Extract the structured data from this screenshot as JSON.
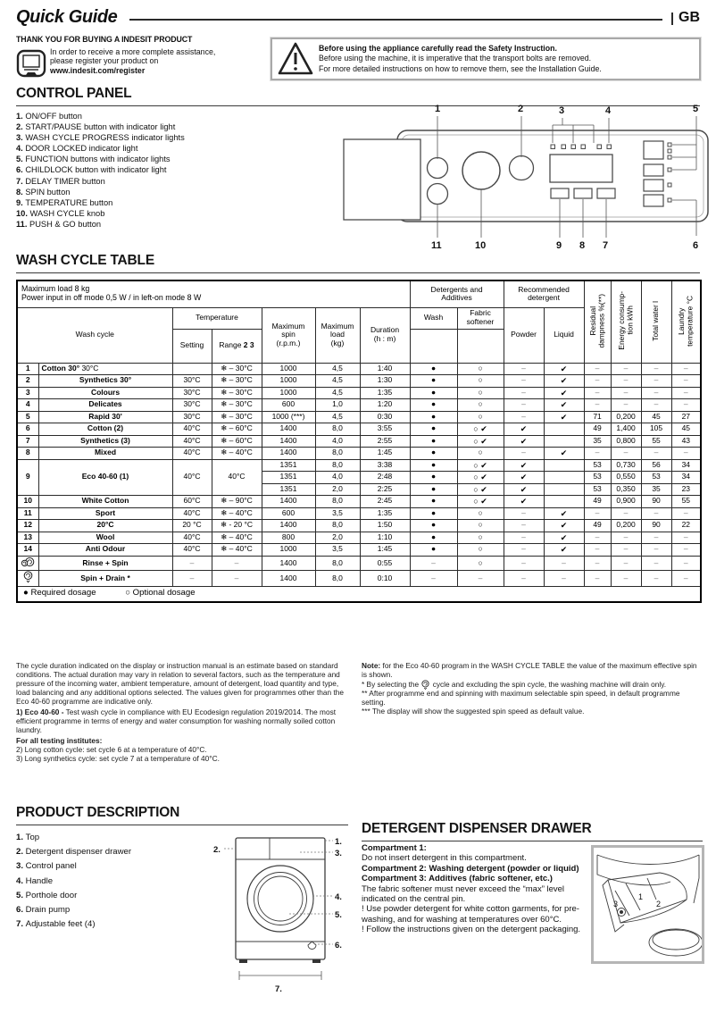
{
  "header": {
    "title": "Quick Guide",
    "country": "GB"
  },
  "thanks": {
    "heading": "THANK YOU FOR BUYING A INDESIT PRODUCT",
    "line1": "In order to receive a more complete assistance,",
    "line2": "please register your product on",
    "link": "www.indesit.com/register"
  },
  "warning": {
    "bold": "Before using the appliance carefully read the Safety Instruction.",
    "line2": "Before using the machine, it is imperative that the transport bolts are removed.",
    "line3": "For more detailed instructions on how to remove them, see the Installation Guide."
  },
  "control_panel": {
    "heading": "CONTROL PANEL",
    "items": [
      {
        "num": "1.",
        "label": "ON/OFF button"
      },
      {
        "num": "2.",
        "label": " START/PAUSE button with indicator light"
      },
      {
        "num": "3.",
        "label": "WASH CYCLE PROGRESS indicator lights"
      },
      {
        "num": "4.",
        "label": "DOOR LOCKED indicator light"
      },
      {
        "num": "5.",
        "label": "FUNCTION buttons with indicator lights"
      },
      {
        "num": "6.",
        "label": "CHILDLOCK button with indicator light"
      },
      {
        "num": "7.",
        "label": "DELAY TIMER button"
      },
      {
        "num": "8.",
        "label": "SPIN button"
      },
      {
        "num": "9.",
        "label": "TEMPERATURE button"
      },
      {
        "num": "10.",
        "label": "WASH CYCLE knob"
      },
      {
        "num": "11.",
        "label": "PUSH & GO button"
      }
    ],
    "callouts_top": [
      "1",
      "2",
      "3",
      "4",
      "5"
    ],
    "callouts_bottom": [
      "11",
      "10",
      "9",
      "8",
      "7",
      "6"
    ]
  },
  "wash_table": {
    "heading": "WASH CYCLE TABLE",
    "info": "Maximum load 8 kg\nPower input in off  mode 0,5 W / in left-on mode 8 W",
    "headers": {
      "wash_cycle": "Wash cycle",
      "temperature": "Temperature",
      "setting": "Setting",
      "range_prefix": "Range ",
      "range_bold": "2 3",
      "spin": "Maximum\nspin\n(r.p.m.)",
      "load": "Maximum\nload\n(kg)",
      "duration": "Duration\n(h : m)",
      "det_add": "Detergents and\nAdditives",
      "rec_det": "Recommended\ndetergent",
      "wash": "Wash",
      "softener": "Fabric\nsoftener",
      "powder": "Powder",
      "liquid": "Liquid",
      "residual": "Residual\ndampness %(**)",
      "energy": "Energy consump-\ntion kWh",
      "water": "Total water l",
      "laundry": "Laundry\ntemperature °C"
    },
    "symbols": {
      "dot": "●",
      "circle": "○",
      "circle-check": "○ ✔",
      "check": "✔",
      "dash": "–"
    },
    "rows": [
      {
        "num": "1",
        "name": "Cotton 30°",
        "suffix": " 30°C",
        "setting": "",
        "range": "❄ – 30°C",
        "spin": "1000",
        "load": "4,5",
        "dur": "1:40",
        "wash": "dot",
        "soft": "circle",
        "powder": "dash",
        "liquid": "check",
        "res": "–",
        "en": "–",
        "wat": "–",
        "temp": "–"
      },
      {
        "num": "2",
        "name": "Synthetics 30°",
        "setting": "30°C",
        "range": "❄ – 30°C",
        "spin": "1000",
        "load": "4,5",
        "dur": "1:30",
        "wash": "dot",
        "soft": "circle",
        "powder": "dash",
        "liquid": "check",
        "res": "–",
        "en": "–",
        "wat": "–",
        "temp": "–"
      },
      {
        "num": "3",
        "name": "Colours",
        "setting": "30°C",
        "range": "❄ – 30°C",
        "spin": "1000",
        "load": "4,5",
        "dur": "1:35",
        "wash": "dot",
        "soft": "circle",
        "powder": "dash",
        "liquid": "check",
        "res": "–",
        "en": "–",
        "wat": "–",
        "temp": "–"
      },
      {
        "num": "4",
        "name": "Delicates",
        "setting": "30°C",
        "range": "❄ – 30°C",
        "spin": "600",
        "load": "1,0",
        "dur": "1:20",
        "wash": "dot",
        "soft": "circle",
        "powder": "dash",
        "liquid": "check",
        "res": "–",
        "en": "–",
        "wat": "–",
        "temp": "–"
      },
      {
        "num": "5",
        "name": "Rapid 30'",
        "setting": "30°C",
        "range": "❄ – 30°C",
        "spin": "1000 (***)",
        "load": "4,5",
        "dur": "0:30",
        "wash": "dot",
        "soft": "circle",
        "powder": "dash",
        "liquid": "check",
        "res": "71",
        "en": "0,200",
        "wat": "45",
        "temp": "27"
      },
      {
        "num": "6",
        "name": "Cotton (2)",
        "setting": "40°C",
        "range": "❄ – 60°C",
        "spin": "1400",
        "load": "8,0",
        "dur": "3:55",
        "wash": "dot",
        "soft": "circle-check",
        "powder": "check",
        "liquid": "",
        "res": "49",
        "en": "1,400",
        "wat": "105",
        "temp": "45"
      },
      {
        "num": "7",
        "name": "Synthetics (3)",
        "setting": "40°C",
        "range": "❄ – 60°C",
        "spin": "1400",
        "load": "4,0",
        "dur": "2:55",
        "wash": "dot",
        "soft": "circle-check",
        "powder": "check",
        "liquid": "",
        "res": "35",
        "en": "0,800",
        "wat": "55",
        "temp": "43"
      },
      {
        "num": "8",
        "name": "Mixed",
        "setting": "40°C",
        "range": "❄ – 40°C",
        "spin": "1400",
        "load": "8,0",
        "dur": "1:45",
        "wash": "dot",
        "soft": "circle",
        "powder": "dash",
        "liquid": "check",
        "res": "–",
        "en": "–",
        "wat": "–",
        "temp": "–"
      },
      {
        "num": "9",
        "name": "Eco 40-60 (1)",
        "setting": "40°C",
        "range": "40°C",
        "sub": [
          {
            "spin": "1351",
            "load": "8,0",
            "dur": "3:38",
            "wash": "dot",
            "soft": "circle-check",
            "powder": "check",
            "liquid": "",
            "res": "53",
            "en": "0,730",
            "wat": "56",
            "temp": "34"
          },
          {
            "spin": "1351",
            "load": "4,0",
            "dur": "2:48",
            "wash": "dot",
            "soft": "circle-check",
            "powder": "check",
            "liquid": "",
            "res": "53",
            "en": "0,550",
            "wat": "53",
            "temp": "34"
          },
          {
            "spin": "1351",
            "load": "2,0",
            "dur": "2:25",
            "wash": "dot",
            "soft": "circle-check",
            "powder": "check",
            "liquid": "",
            "res": "53",
            "en": "0,350",
            "wat": "35",
            "temp": "23"
          }
        ]
      },
      {
        "num": "10",
        "name": "White Cotton",
        "setting": "60°C",
        "range": "❄ – 90°C",
        "spin": "1400",
        "load": "8,0",
        "dur": "2:45",
        "wash": "dot",
        "soft": "circle-check",
        "powder": "check",
        "liquid": "",
        "res": "49",
        "en": "0,900",
        "wat": "90",
        "temp": "55"
      },
      {
        "num": "11",
        "name": "Sport",
        "setting": "40°C",
        "range": "❄ – 40°C",
        "spin": "600",
        "load": "3,5",
        "dur": "1:35",
        "wash": "dot",
        "soft": "circle",
        "powder": "dash",
        "liquid": "check",
        "res": "–",
        "en": "–",
        "wat": "–",
        "temp": "–"
      },
      {
        "num": "12",
        "name": "20°C",
        "setting": "20 °C",
        "range": "❄ - 20 °C",
        "spin": "1400",
        "load": "8,0",
        "dur": "1:50",
        "wash": "dot",
        "soft": "circle",
        "powder": "dash",
        "liquid": "check",
        "res": "49",
        "en": "0,200",
        "wat": "90",
        "temp": "22"
      },
      {
        "num": "13",
        "name": "Wool",
        "setting": "40°C",
        "range": "❄ – 40°C",
        "spin": "800",
        "load": "2,0",
        "dur": "1:10",
        "wash": "dot",
        "soft": "circle",
        "powder": "dash",
        "liquid": "check",
        "res": "–",
        "en": "–",
        "wat": "–",
        "temp": "–"
      },
      {
        "num": "14",
        "name": "Anti Odour",
        "setting": "40°C",
        "range": "❄ – 40°C",
        "spin": "1000",
        "load": "3,5",
        "dur": "1:45",
        "wash": "dot",
        "soft": "circle",
        "powder": "dash",
        "liquid": "check",
        "res": "–",
        "en": "–",
        "wat": "–",
        "temp": "–"
      },
      {
        "icon": "rinse-spin-icon",
        "name": "Rinse + Spin",
        "setting": "–",
        "range": "–",
        "spin": "1400",
        "load": "8,0",
        "dur": "0:55",
        "wash": "dash",
        "soft": "circle",
        "powder": "dash",
        "liquid": "dash",
        "res": "–",
        "en": "–",
        "wat": "–",
        "temp": "–"
      },
      {
        "icon": "spin-drain-icon",
        "name": "Spin + Drain *",
        "setting": "–",
        "range": "–",
        "spin": "1400",
        "load": "8,0",
        "dur": "0:10",
        "wash": "dash",
        "soft": "dash",
        "powder": "dash",
        "liquid": "dash",
        "res": "–",
        "en": "–",
        "wat": "–",
        "temp": "–"
      }
    ],
    "legend": {
      "required": "● Required dosage",
      "optional": "○ Optional dosage"
    }
  },
  "notes_left": {
    "para1": "The cycle duration indicated on the display or instruction manual is an estimate based on standard conditions. The actual duration may vary in relation to several factors, such as the temperature and pressure of the incoming water, ambient temperature, amount of detergent, load quantity and type, load balancing and any additional options selected. The values given for programmes other than the Eco 40-60 programme are indicative only.",
    "para2_bold": "1) Eco 40-60 -",
    "para2": " Test wash cycle in compliance with EU Ecodesign regulation 2019/2014. The most efficient programme in terms of energy and water consumption for washing normally soiled cotton laundry.",
    "para3_bold": "For all testing institutes:",
    "line4": "2) Long cotton cycle: set cycle 6 at a temperature of 40°C.",
    "line5": "3) Long synthetics cycle: set cycle 7 at a temperature of 40°C."
  },
  "notes_right": {
    "note_bold": "Note:",
    "note": " for the Eco 40-60 program in the WASH CYCLE TABLE the value of the maximum effective spin is shown.",
    "star1_before": "* By selecting the ",
    "star1_after": " cycle and excluding the spin cycle, the washing machine will drain only.",
    "star2": "** After programme end and spinning with maximum selectable spin speed, in default programme setting.",
    "star3": "*** The display will show the suggested spin speed as default value."
  },
  "product": {
    "heading": "PRODUCT DESCRIPTION",
    "items": [
      {
        "num": "1.",
        "label": "Top"
      },
      {
        "num": "2.",
        "label": "Detergent dispenser drawer"
      },
      {
        "num": "3.",
        "label": "Control panel"
      },
      {
        "num": "4.",
        "label": "Handle"
      },
      {
        "num": "5.",
        "label": "Porthole door"
      },
      {
        "num": "6.",
        "label": "Drain pump"
      },
      {
        "num": "7.",
        "label": "Adjustable feet (4)"
      }
    ],
    "callouts": [
      "1.",
      "2.",
      "3.",
      "4.",
      "5.",
      "6.",
      "7."
    ]
  },
  "dispenser": {
    "heading": "DETERGENT DISPENSER DRAWER",
    "c1_bold": "Compartment 1:",
    "c1_text": "Do not insert detergent in this compartment.",
    "c2_bold": "Compartment 2: Washing detergent (powder or liquid)",
    "c3_bold": "Compartment 3: Additives (fabric softener, etc.)",
    "c3_text": "The fabric softener must never exceed the “max” level indicated on the central pin.",
    "warn1": "! Use powder detergent for white cotton garments, for pre-washing, and for washing at temperatures over 60°C.",
    "warn2": "! Follow the instructions given on the detergent packaging.",
    "numbers": [
      "1",
      "2",
      "3"
    ]
  }
}
